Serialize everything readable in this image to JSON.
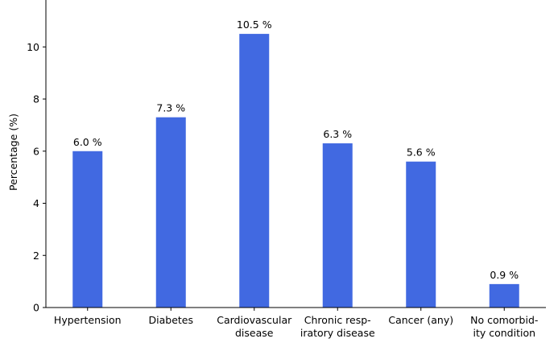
{
  "chart_data": {
    "type": "bar",
    "title": "",
    "xlabel": "",
    "ylabel": "Percentage (%)",
    "ylim": [
      0,
      11.8
    ],
    "yticks": [
      0,
      2,
      4,
      6,
      8,
      10
    ],
    "grid": false,
    "bar_color": "#4169E1",
    "categories": [
      [
        "Hypertension"
      ],
      [
        "Diabetes"
      ],
      [
        "Cardiovascular",
        "disease"
      ],
      [
        "Chronic resp-",
        "iratory disease"
      ],
      [
        "Cancer (any)"
      ],
      [
        "No comorbid-",
        "ity condition"
      ]
    ],
    "values": [
      6.0,
      7.3,
      10.5,
      6.3,
      5.6,
      0.9
    ],
    "data_labels": [
      "6.0 %",
      "7.3 %",
      "10.5 %",
      "6.3 %",
      "5.6 %",
      "0.9 %"
    ]
  }
}
